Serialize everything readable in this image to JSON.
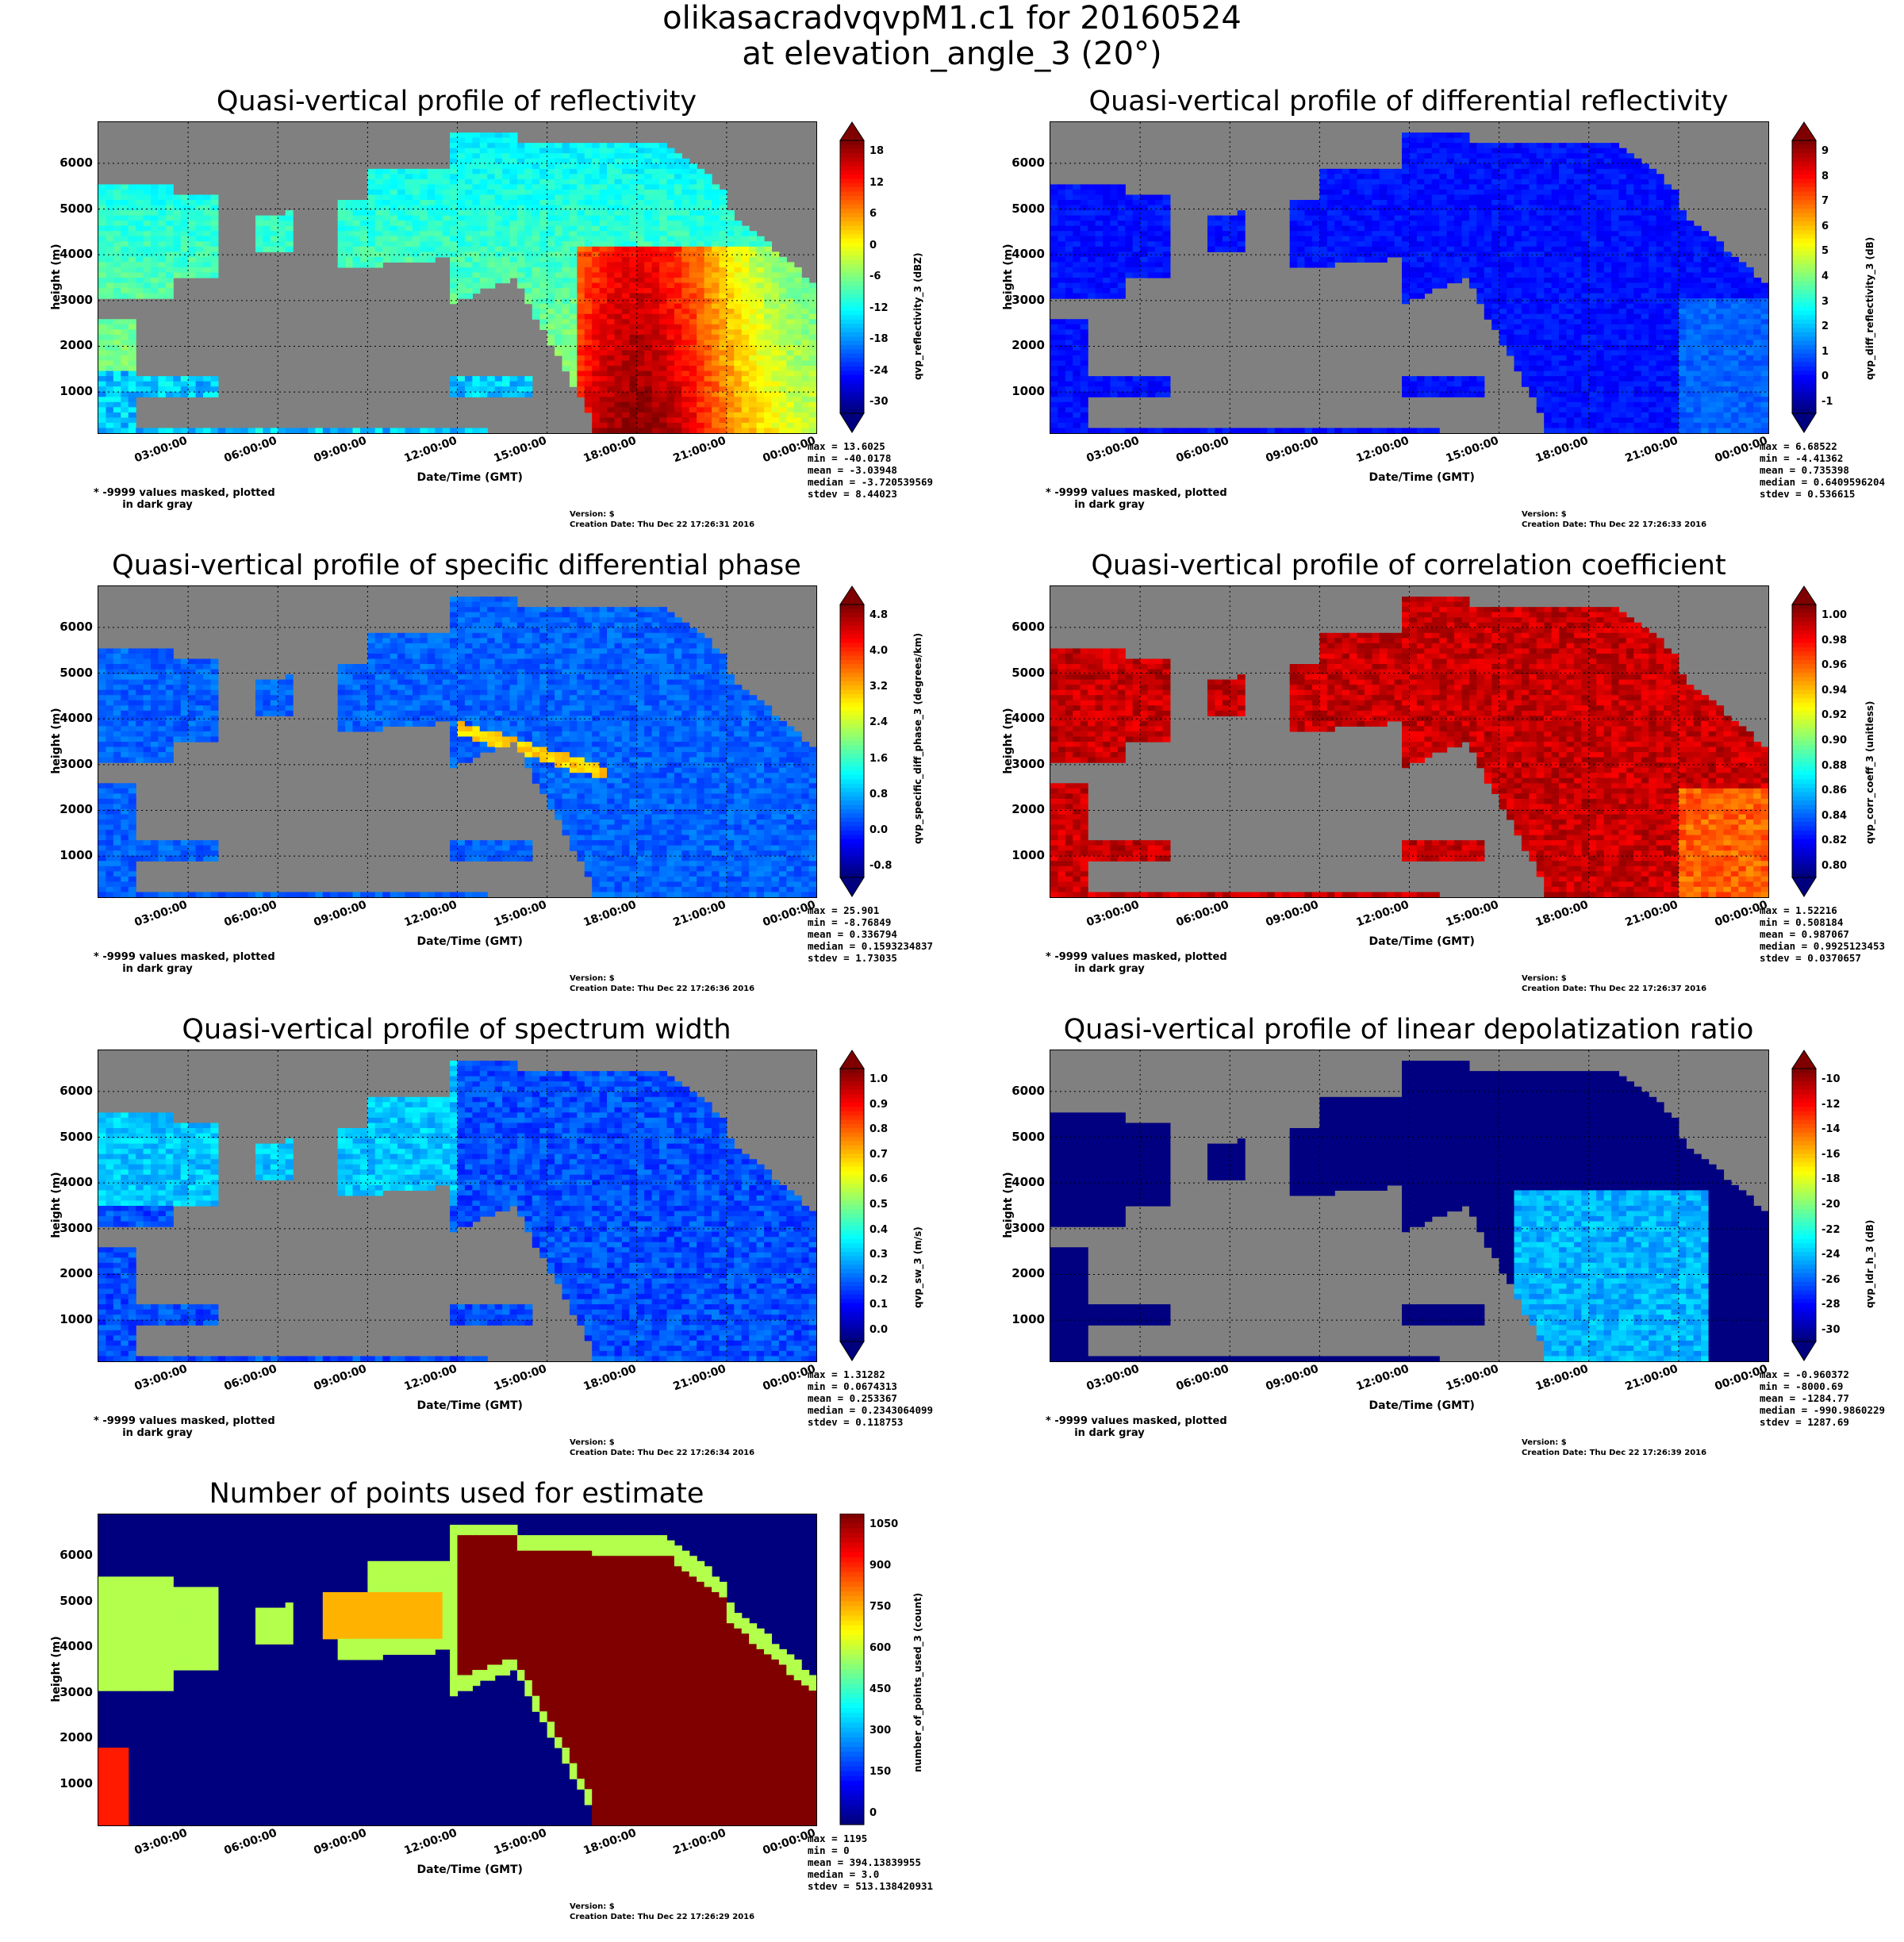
{
  "suptitle": [
    "olikasacradvqvpM1.c1 for 20160524",
    "at elevation_angle_3 (20°)"
  ],
  "common": {
    "ylabel": "height (m)",
    "xlabel": "Date/Time (GMT)",
    "mask_note": "* -9999 values masked, plotted\n        in dark gray",
    "version": "Version: $"
  },
  "colors": {
    "mask": "#808080",
    "jet_low": "#00007f",
    "jet_high": "#7f0000"
  },
  "chart_data": [
    {
      "type": "heatmap",
      "title": "Quasi-vertical profile of reflectivity",
      "colorbar_label": "qvp_reflectivity_3 (dBZ)",
      "colorbar_ticks": [
        "18",
        "12",
        "6",
        "0",
        "-6",
        "-12",
        "-18",
        "-24",
        "-30"
      ],
      "colorbar_extend": true,
      "yticks": [
        "6000",
        "5000",
        "4000",
        "3000",
        "2000",
        "1000"
      ],
      "xticks": [
        "03:00:00",
        "06:00:00",
        "09:00:00",
        "12:00:00",
        "15:00:00",
        "18:00:00",
        "21:00:00",
        "00:00:00"
      ],
      "stats": [
        "max = 13.6025",
        "min = -40.0178",
        "mean = -3.03948",
        "median = -3.720539569",
        "stdev = 8.44023"
      ],
      "creation": "Creation Date: Thu Dec 22 17:26:31 2016",
      "field": "refl",
      "value_range": [
        -33,
        20
      ]
    },
    {
      "type": "heatmap",
      "title": "Quasi-vertical profile of differential reflectivity",
      "colorbar_label": "qvp_diff_reflectivity_3 (dB)",
      "colorbar_ticks": [
        "9",
        "8",
        "7",
        "6",
        "5",
        "4",
        "3",
        "2",
        "1",
        "0",
        "-1"
      ],
      "colorbar_extend": true,
      "yticks": [
        "6000",
        "5000",
        "4000",
        "3000",
        "2000",
        "1000"
      ],
      "xticks": [
        "03:00:00",
        "06:00:00",
        "09:00:00",
        "12:00:00",
        "15:00:00",
        "18:00:00",
        "21:00:00",
        "00:00:00"
      ],
      "stats": [
        "max = 6.68522",
        "min = -4.41362",
        "mean = 0.735398",
        "median = 0.6409596204",
        "stdev = 0.536615"
      ],
      "creation": "Creation Date: Thu Dec 22 17:26:33 2016",
      "field": "zdr",
      "value_range": [
        -1.5,
        9.5
      ]
    },
    {
      "type": "heatmap",
      "title": "Quasi-vertical profile of specific differential phase",
      "colorbar_label": "qvp_specific_diff_phase_3 (degrees/km)",
      "colorbar_ticks": [
        "4.8",
        "4.0",
        "3.2",
        "2.4",
        "1.6",
        "0.8",
        "0.0",
        "-0.8"
      ],
      "colorbar_extend": true,
      "yticks": [
        "6000",
        "5000",
        "4000",
        "3000",
        "2000",
        "1000"
      ],
      "xticks": [
        "03:00:00",
        "06:00:00",
        "09:00:00",
        "12:00:00",
        "15:00:00",
        "18:00:00",
        "21:00:00",
        "00:00:00"
      ],
      "stats": [
        "max = 25.901",
        "min = -8.76849",
        "mean = 0.336794",
        "median = 0.1593234837",
        "stdev = 1.73035"
      ],
      "creation": "Creation Date: Thu Dec 22 17:26:36 2016",
      "field": "kdp",
      "value_range": [
        -1.2,
        5.0
      ]
    },
    {
      "type": "heatmap",
      "title": "Quasi-vertical profile of correlation coefficient",
      "colorbar_label": "qvp_corr_coeff_3 (unitless)",
      "colorbar_ticks": [
        "1.00",
        "0.98",
        "0.96",
        "0.94",
        "0.92",
        "0.90",
        "0.88",
        "0.86",
        "0.84",
        "0.82",
        "0.80"
      ],
      "colorbar_extend": true,
      "yticks": [
        "6000",
        "5000",
        "4000",
        "3000",
        "2000",
        "1000"
      ],
      "xticks": [
        "03:00:00",
        "06:00:00",
        "09:00:00",
        "12:00:00",
        "15:00:00",
        "18:00:00",
        "21:00:00",
        "00:00:00"
      ],
      "stats": [
        "max = 1.52216",
        "min = 0.508184",
        "mean = 0.987067",
        "median = 0.9925123453",
        "stdev = 0.0370657"
      ],
      "creation": "Creation Date: Thu Dec 22 17:26:37 2016",
      "field": "rho",
      "value_range": [
        0.79,
        1.0
      ]
    },
    {
      "type": "heatmap",
      "title": "Quasi-vertical profile of spectrum width",
      "colorbar_label": "qvp_sw_3 (m/s)",
      "colorbar_ticks": [
        "1.0",
        "0.9",
        "0.8",
        "0.7",
        "0.6",
        "0.5",
        "0.4",
        "0.3",
        "0.2",
        "0.1",
        "0.0"
      ],
      "colorbar_extend": true,
      "yticks": [
        "6000",
        "5000",
        "4000",
        "3000",
        "2000",
        "1000"
      ],
      "xticks": [
        "03:00:00",
        "06:00:00",
        "09:00:00",
        "12:00:00",
        "15:00:00",
        "18:00:00",
        "21:00:00",
        "00:00:00"
      ],
      "stats": [
        "max = 1.31282",
        "min = 0.0674313",
        "mean = 0.253367",
        "median = 0.2343064099",
        "stdev = 0.118753"
      ],
      "creation": "Creation Date: Thu Dec 22 17:26:34 2016",
      "field": "sw",
      "value_range": [
        0,
        1.0
      ]
    },
    {
      "type": "heatmap",
      "title": "Quasi-vertical profile of linear depolatization ratio",
      "colorbar_label": "qvp_ldr_h_3 (dB)",
      "colorbar_ticks": [
        "-10",
        "-12",
        "-14",
        "-16",
        "-18",
        "-20",
        "-22",
        "-24",
        "-26",
        "-28",
        "-30"
      ],
      "colorbar_extend": true,
      "yticks": [
        "6000",
        "5000",
        "4000",
        "3000",
        "2000",
        "1000"
      ],
      "xticks": [
        "03:00:00",
        "06:00:00",
        "09:00:00",
        "12:00:00",
        "15:00:00",
        "18:00:00",
        "21:00:00",
        "00:00:00"
      ],
      "stats": [
        "max = -0.960372",
        "min = -8000.69",
        "mean = -1284.77",
        "median = -990.9860229",
        "stdev = 1287.69"
      ],
      "creation": "Creation Date: Thu Dec 22 17:26:39 2016",
      "field": "ldr",
      "value_range": [
        -31,
        -9
      ]
    },
    {
      "type": "heatmap",
      "title": "Number of points used for estimate",
      "colorbar_label": "number_of_points_used_3 (count)",
      "colorbar_ticks": [
        "1050",
        "900",
        "750",
        "600",
        "450",
        "300",
        "150",
        "0"
      ],
      "colorbar_extend": false,
      "yticks": [
        "6000",
        "5000",
        "4000",
        "3000",
        "2000",
        "1000"
      ],
      "xticks": [
        "03:00:00",
        "06:00:00",
        "09:00:00",
        "12:00:00",
        "15:00:00",
        "18:00:00",
        "21:00:00",
        "00:00:00"
      ],
      "stats": [
        "max = 1195",
        "min = 0",
        "mean = 394.13839955",
        "median = 3.0",
        "stdev = 513.138420931"
      ],
      "creation": "Creation Date: Thu Dec 22 17:26:29 2016",
      "field": "npts",
      "value_range": [
        0,
        1195
      ]
    }
  ]
}
